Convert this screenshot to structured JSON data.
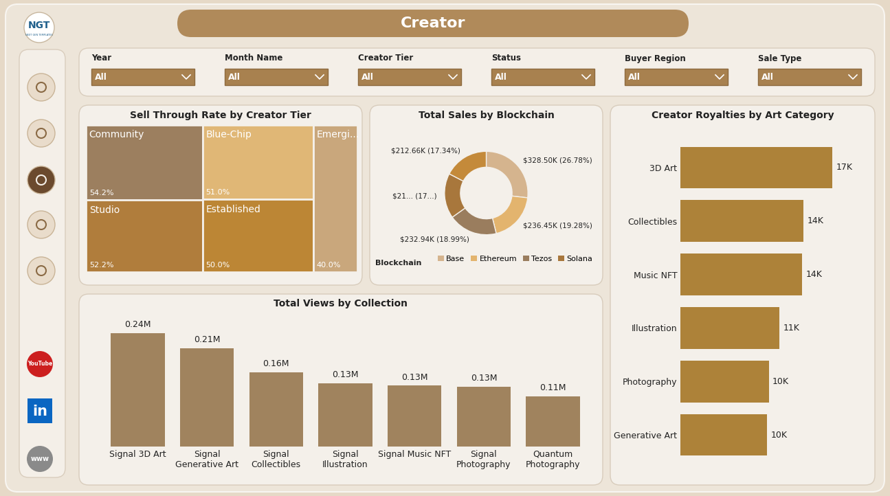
{
  "title": "Creator",
  "logo": {
    "text": "NGT",
    "subtext": "NEXT GEN TEMPLATES"
  },
  "filters": [
    {
      "label": "Year",
      "value": "All"
    },
    {
      "label": "Month Name",
      "value": "All"
    },
    {
      "label": "Creator Tier",
      "value": "All"
    },
    {
      "label": "Status",
      "value": "All"
    },
    {
      "label": "Buyer Region",
      "value": "All"
    },
    {
      "label": "Sale Type",
      "value": "All"
    }
  ],
  "social": [
    "YouTube",
    "in",
    "www"
  ],
  "chart_data": [
    {
      "type": "treemap",
      "title": "Sell Through Rate by Creator Tier",
      "categories": [
        "Community",
        "Studio",
        "Blue-Chip",
        "Established",
        "Emergi..."
      ],
      "values": [
        54.2,
        52.2,
        51.0,
        50.0,
        40.0
      ],
      "value_labels": [
        "54.2%",
        "52.2%",
        "51.0%",
        "50.0%",
        "40.0%"
      ],
      "colors": [
        "#9c7f5f",
        "#b07d3c",
        "#e0b776",
        "#bc8635",
        "#c9a77c"
      ],
      "data_labels": true,
      "tick_labels": false
    },
    {
      "type": "donut",
      "title": "Total Sales by Blockchain",
      "categories": [
        "Base",
        "Ethereum",
        "Tezos",
        "Solana",
        null
      ],
      "values": [
        328.5,
        236.45,
        232.94,
        214.0,
        212.66
      ],
      "value_labels": [
        "$328.50K (26.78%)",
        "$236.45K (19.28%)",
        "$232.94K (18.99%)",
        "$21... (17...)",
        "$212.66K (17.34%)"
      ],
      "colors": [
        "#d5b48e",
        "#e3b46e",
        "#9a7d5e",
        "#a8773c",
        "#c48a3a"
      ],
      "legend": "lower center",
      "legend_title": "Blockchain",
      "data_labels": true
    },
    {
      "type": "bar",
      "orientation": "horizontal",
      "title": "Creator Royalties by Art Category",
      "categories": [
        "3D Art",
        "Collectibles",
        "Music NFT",
        "Illustration",
        "Photography",
        "Generative Art"
      ],
      "values": [
        17.0,
        13.8,
        13.6,
        11.1,
        9.9,
        9.7
      ],
      "value_labels": [
        "17K",
        "14K",
        "14K",
        "11K",
        "10K",
        "10K"
      ],
      "color": "#ad8239",
      "data_labels": true,
      "tick_labels": "y"
    },
    {
      "type": "bar",
      "title": "Total Views by Collection",
      "categories": [
        "Signal 3D Art",
        "Signal Generative Art",
        "Signal Collectibles",
        "Signal Illustration",
        "Signal Music NFT",
        "Signal Photography",
        "Quantum Photography"
      ],
      "values": [
        0.24,
        0.208,
        0.157,
        0.134,
        0.129,
        0.127,
        0.106
      ],
      "value_labels": [
        "0.24M",
        "0.21M",
        "0.16M",
        "0.13M",
        "0.13M",
        "0.13M",
        "0.11M"
      ],
      "color": "#a0835e",
      "data_labels": true,
      "tick_labels": "x"
    }
  ]
}
